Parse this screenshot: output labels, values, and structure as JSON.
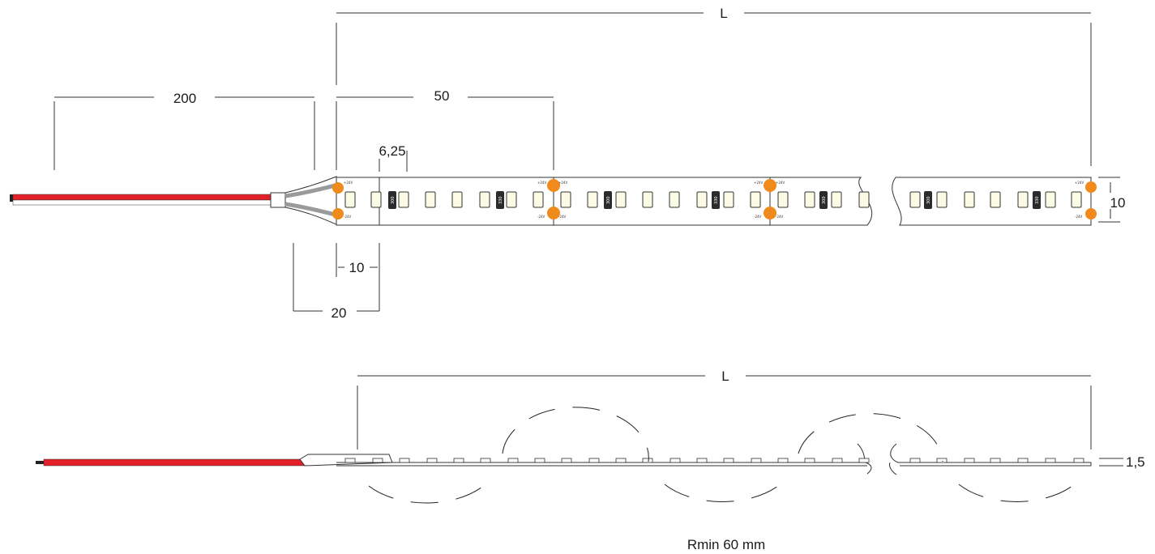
{
  "top_view": {
    "dim_length_label": "L",
    "dim_cable_label": "200",
    "dim_pitch_label": "50",
    "dim_led_pitch_label": "6,25",
    "dim_width_label": "10",
    "dim_endcap_label": "10",
    "dim_connector_label": "20",
    "pad_pos_label": "+24V",
    "pad_neg_label": "-24V",
    "resistor_label_a": "300",
    "resistor_label_b": "330",
    "cable_colors": {
      "positive": "#e3202a",
      "negative": "#ffffff"
    }
  },
  "side_view": {
    "dim_length_label": "L",
    "dim_thickness_label": "1,5",
    "bend_radius_label": "Rmin 60 mm"
  },
  "colors": {
    "pad": "#f08a1c",
    "led": "#fbfbe6",
    "cable_red": "#e3202a"
  }
}
